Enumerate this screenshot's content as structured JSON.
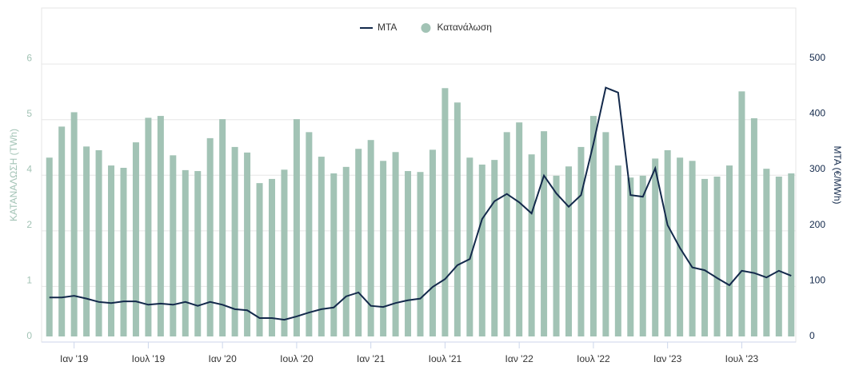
{
  "chart_data": {
    "type": "combo",
    "categories": [
      null,
      null,
      "Ιαν '19",
      null,
      null,
      null,
      null,
      null,
      "Ιουλ '19",
      null,
      null,
      null,
      null,
      null,
      "Ιαν '20",
      null,
      null,
      null,
      null,
      null,
      "Ιουλ '20",
      null,
      null,
      null,
      null,
      null,
      "Ιαν '21",
      null,
      null,
      null,
      null,
      null,
      "Ιουλ '21",
      null,
      null,
      null,
      null,
      null,
      "Ιαν '22",
      null,
      null,
      null,
      null,
      null,
      "Ιουλ '22",
      null,
      null,
      null,
      null,
      null,
      "Ιαν '23",
      null,
      null,
      null,
      null,
      null,
      "Ιουλ '23",
      null,
      null,
      null,
      null
    ],
    "ylabel": "ΚΑΤΑΝΑΛΩΣΗ (TWh)",
    "y2label": "MTA (€/MWh)",
    "ylim": [
      0,
      7.09
    ],
    "yticks": [
      0,
      {
        "value": 1.2,
        "label": "1"
      },
      {
        "value": 2.4,
        "label": "2"
      },
      {
        "value": 3.6,
        "label": "4"
      },
      {
        "value": 4.8,
        "label": "5"
      },
      6
    ],
    "y2lim": [
      0,
      590
    ],
    "y2ticks": [
      0,
      100,
      200,
      300,
      400,
      500
    ],
    "grid": true,
    "legend": "top",
    "series": [
      {
        "name": "MTA",
        "type": "line",
        "axis": "y2",
        "color": "#13294b",
        "values": [
          70,
          70,
          73,
          68,
          62,
          60,
          63,
          63,
          57,
          59,
          57,
          62,
          55,
          62,
          57,
          49,
          47,
          33,
          33,
          30,
          36,
          43,
          49,
          52,
          72,
          79,
          55,
          53,
          60,
          65,
          68,
          89,
          103,
          128,
          139,
          211,
          243,
          256,
          241,
          221,
          289,
          257,
          233,
          254,
          346,
          447,
          438,
          254,
          251,
          302,
          200,
          159,
          124,
          119,
          105,
          92,
          118,
          114,
          106,
          118,
          109
        ]
      },
      {
        "name": "Κατανάλωση",
        "type": "bar",
        "color": "#a2c3b5",
        "values": [
          3.86,
          4.53,
          4.84,
          4.1,
          4.02,
          3.69,
          3.64,
          4.19,
          4.72,
          4.76,
          3.91,
          3.59,
          3.57,
          4.28,
          4.69,
          4.09,
          3.97,
          3.31,
          3.4,
          3.6,
          4.69,
          4.41,
          3.88,
          3.52,
          3.66,
          4.05,
          4.24,
          3.79,
          3.98,
          3.57,
          3.55,
          4.03,
          5.36,
          5.05,
          3.86,
          3.71,
          3.81,
          4.41,
          4.62,
          3.93,
          4.43,
          3.47,
          3.67,
          4.09,
          4.76,
          4.41,
          3.69,
          3.43,
          3.47,
          3.84,
          4.02,
          3.86,
          3.79,
          3.4,
          3.45,
          3.69,
          5.29,
          4.71,
          3.62,
          3.45,
          3.52
        ]
      }
    ]
  }
}
